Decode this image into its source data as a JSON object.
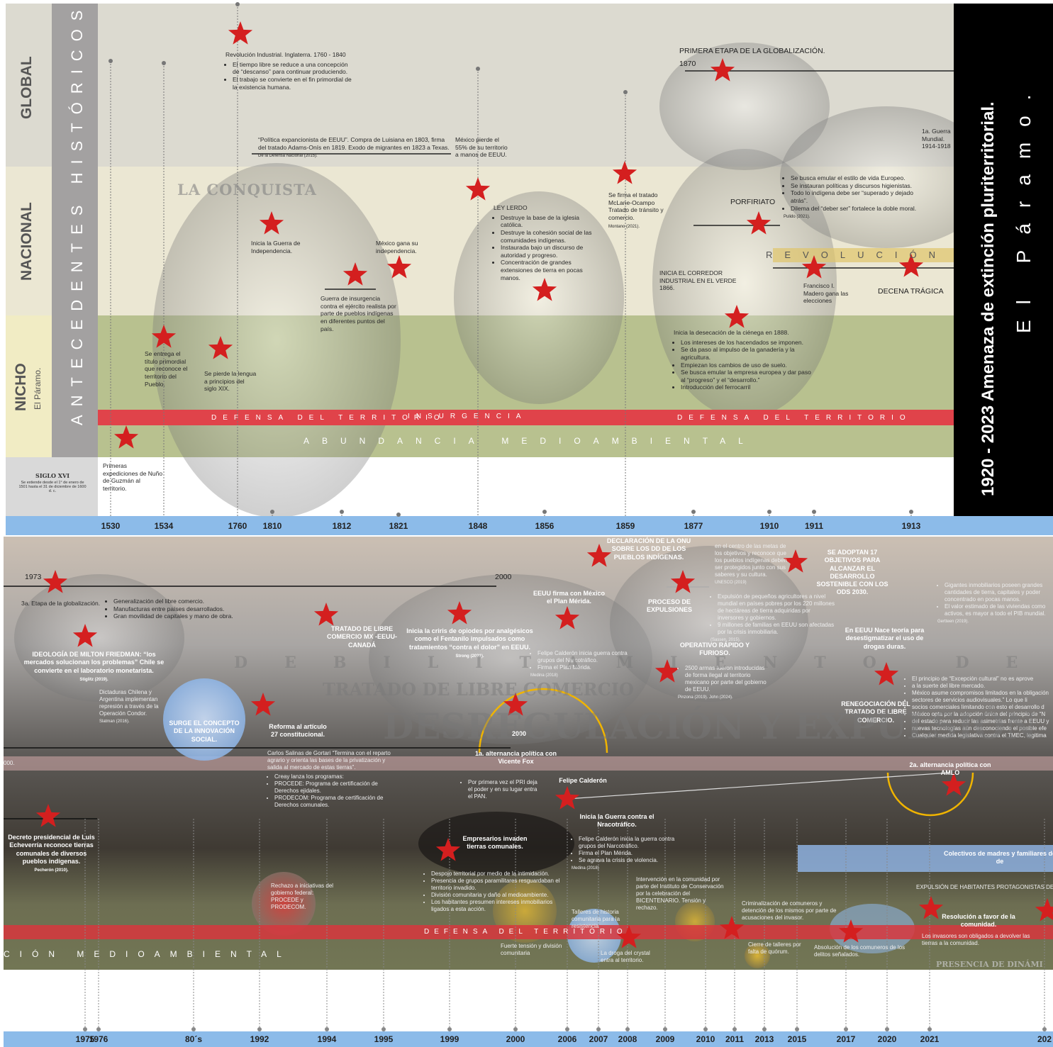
{
  "top": {
    "row_labels": [
      "GLOBAL",
      "NACIONAL",
      "NICHO"
    ],
    "nicho_sub": "El Páramo.",
    "vertical_title": "ANTECEDENTES HISTÓRICOS.",
    "siglo": {
      "title": "SIGLO XVI",
      "text": "Se extiende desde el 1° de enero de 1501 hasta el 31 de diciembre de 1600 d. c."
    },
    "years": [
      "1530",
      "1534",
      "1760",
      "1810",
      "1812",
      "1821",
      "1848",
      "1856",
      "1859",
      "1877",
      "1910",
      "1911",
      "1913"
    ],
    "bands": [
      "LA CONQUISTA",
      "REVOLUCIÓN",
      "DEFENSA DEL TERRITORIO",
      "INSURGENCIA",
      "DEFENSA DEL TERRITORIO",
      "ABUNDANCIA MEDIOAMBIENTAL"
    ],
    "items": [
      {
        "text": "Revolución Industrial. Inglaterra. 1760 - 1840",
        "bullets": [
          "El tiempo libre se reduce a una concepción de “descanso” para continuar produciendo.",
          "El trabajo se convierte en el fin primordial de la existencia humana."
        ]
      },
      {
        "text": "“Política expancionista de EEUU”. Compra de Luisiana en 1803, firma del tratado Adams-Onís en 1819. Exodo de migrantes en 1823 a Texas.",
        "source": "De la Defensa Nacional (2015)."
      },
      {
        "text": "México pierde el 55% de su territorio a manos de EEUU."
      },
      {
        "text": "PRIMERA ETAPA DE LA GLOBALIZACIÓN."
      },
      {
        "text": "1870"
      },
      {
        "text": "1a. Guerra Mundial. 1914-1918"
      },
      {
        "bullets": [
          "Se busca emular el estilo de vida Europeo.",
          "Se instauran políticas y discursos higienistas.",
          "Todo lo indígena debe ser “superado y dejado atrás”.",
          "Dilema del “deber ser” fortalece la doble moral."
        ],
        "source": "Pulido (2021)."
      },
      {
        "text": "PORFIRIATO"
      },
      {
        "text": "Se firma el tratado McLane-Ocampo Tratado de tránsito y comercio.",
        "source": "Montano (2021)."
      },
      {
        "text": "LEY LERDO",
        "bullets": [
          "Destruye la base de la iglesia católica.",
          "Destruye la cohesión social de las comunidades indígenas.",
          "Instaurada bajo un discurso de autoridad y progreso.",
          "Concentración de grandes extensiones de tierra en pocas manos."
        ]
      },
      {
        "text": "Inicia la Guerra de Independencia."
      },
      {
        "text": "México gana su independencia."
      },
      {
        "text": "Guerra de insurgencia contra el ejército realista por parte de pueblos indígenas en diferentes puntos del país."
      },
      {
        "text": "INICIA EL CORREDOR INDUSTRIAL EN EL VERDE 1866."
      },
      {
        "text": "Francisco I. Madero gana las elecciones"
      },
      {
        "text": "DECENA TRÁGICA"
      },
      {
        "text": "Inicia la desecación de la ciénega en 1888.",
        "bullets": [
          "Los intereses de los hacendados se imponen.",
          "Se da paso al impulso de la ganadería y la agricultura.",
          "Empiezan los cambios de uso de suelo.",
          "Se busca emular la empresa europea y dar paso al “progreso” y el “desarrollo.”",
          "Introducción del ferrocarril"
        ]
      },
      {
        "text": "Se entrega el título primordial que reconoce el territorio del Pueblo."
      },
      {
        "text": "Se pierde la lengua a principios del siglo XIX."
      },
      {
        "text": "Primeras expediciones de Nuño de Guzmán al territorio."
      }
    ]
  },
  "side": {
    "title": "1920 - 2023  Amenaza de extinción pluriterritorial.",
    "subtitle": "El Páramo."
  },
  "bottom": {
    "years": [
      "1975",
      "1976",
      "80´s",
      "1992",
      "1994",
      "1995",
      "1999",
      "2000",
      "2006",
      "2007",
      "2008",
      "2009",
      "2010",
      "2011",
      "2013",
      "2015",
      "2017",
      "2020",
      "2021",
      "202"
    ],
    "bands": [
      "DEBILITAMIENTO DEL ESTADO",
      "TRATADO DE LIBRE COMERCIO",
      "DESREGULACIÓN Y EXPULSIÓN",
      "DEFENSA DEL TERRITORIO",
      "CIÓN MEDIOAMBIENTAL",
      "PRESENCIA DE DINÁMI"
    ],
    "items": [
      {
        "text": "1973"
      },
      {
        "text": "2000"
      },
      {
        "text": "3a. Etapa de la globalización."
      },
      {
        "bullets": [
          "Generalización del libre comercio.",
          "Manufacturas entre países desarrollados.",
          "Gran movilidad de capitales y mano de obra."
        ]
      },
      {
        "text": "IDEOLOGÍA DE MILTON FRIEDMAN: “los mercados solucionan los problemas” Chile se convierte en el laboratorio monetarista.",
        "source": "Stiglitz (2019)."
      },
      {
        "text": "Dictaduras Chilena y Argentina implementan represión a través de la Operación Condor.",
        "source": "Slatman (2016)."
      },
      {
        "text": "SURGE EL CONCEPTO DE LA INNOVACIÓN SOCIAL."
      },
      {
        "text": "Reforma al artículo 27 constitucional."
      },
      {
        "text": "TRATADO DE LIBRE COMERCIO MX -EEUU- CANADÁ"
      },
      {
        "text": "Carlos Salinas de Gortari “Termina con el reparto agrario y orienta las bases de la privatización y salida al mercado de estas tierras”.",
        "bullets": [
          "Creay lanza los programas:",
          "PROCEDE: Programa de certificación de Derechos ejidales.",
          "PRODECOM: Programa de certificación de Derechos comunales."
        ]
      },
      {
        "text": "Decreto presidencial de Luis Echeverría reconoce tierras comunales de diversos pueblos indígenas.",
        "source": "Pecherón (2010)."
      },
      {
        "text": "Rechazo a iniciativas del gobierno federal: PROCEDE y PRODECOM."
      },
      {
        "text": "Inicia la criris de opiodes por analgésicos como el Fentanilo impulsados como tratamientos “contra el dolor” en EEUU.",
        "source": "Strong (2021)."
      },
      {
        "text": "EEUU firma con México el Plan Mérida."
      },
      {
        "bullets": [
          "Felipe Calderón inicia guerra contra grupos del Narcotráfico.",
          "Firma el Plan Mérida."
        ],
        "source": "Medina (2018)"
      },
      {
        "text": "DECLARACIÓN DE LA ONU SOBRE LOS DD DE LOS PUEBLOS INDÍGENAS."
      },
      {
        "text": "PROCESO DE EXPULSIONES"
      },
      {
        "text": "SE ADOPTAN 17 OBJETIVOS PARA ALCANZAR EL DESARROLLO SOSTENIBLE CON LOS ODS 2030."
      },
      {
        "text": "en el centro de las metas de los objetivos y reconoce que los pueblos indígenas deben ser protegidos junto con sus saberes y su cultura.",
        "source": "UNESCO (2019)"
      },
      {
        "bullets": [
          "Expulsión de pequeños agricultores a nivel mundial en países pobres por los 220 millones de hectáreas de tierra adquiridas por inversores y gobiernos.",
          "9 millones de familias en EEUU son afectadas por la crisis inmobiliaria."
        ],
        "source": "(Sassen, 2015)."
      },
      {
        "text": "OPERATIVO RÁPIDO Y FURIOSO."
      },
      {
        "bullets": [
          "2500 armas fueron introducidas de forma ilegal al territorio mexicano por parte del gobierno de EEUU."
        ],
        "source": "Pinzona (2019). John (2024)."
      },
      {
        "text": "En EEUU Nace teoría para desestigmatizar el uso de drogas duras."
      },
      {
        "bullets": [
          "Gigantes inmobiliarios poseen grandes cantidades de tierra, capitales y poder concentrado en pocas manos.",
          "El valor estimado de las viviendas como activos, es mayor a todo el PIB mundial."
        ],
        "source": "Gertteen (2019)."
      },
      {
        "bullets": [
          "El principio de “Excepción cultural” no es aprove",
          "a la suerte del libre mercado.",
          "México asume compromisos limitados en la obligación",
          "sectores de servicios audiovisuales.” Lo que li",
          "socios comerciales limitando con esto el desarrollo d",
          "México opta por la adopción única del principio de “N",
          "del estado para reducir las asimetrías frente a EEUU y",
          "nuevas tecnologías aún desconociendo el posible efe",
          "Cualquier medida legislativa contra el TMEC, legitima"
        ]
      },
      {
        "text": "RENEGOCIACIÓN DEL TRATADO DE LIBRE COMERCIO."
      },
      {
        "text": "2000"
      },
      {
        "text": "1a. alternancia política con Vicente Fox"
      },
      {
        "bullets": [
          "Por primera vez el PRI deja el poder y en su lugar entra el PAN."
        ]
      },
      {
        "text": "Felipe Calderón"
      },
      {
        "text": "Inicia la Guerra contra el Nracotráfico."
      },
      {
        "bullets": [
          "Felipe Calderón inicia la guerra contra grupos del Narcotráfico.",
          "Firma el Plan Mérida.",
          "Se agrava la crisis de violencia."
        ],
        "source": "Medina (2018)"
      },
      {
        "text": "2a. alternancia política con AMLO"
      },
      {
        "text": "Empresarios invaden tierras comunales."
      },
      {
        "bullets": [
          "Despojo territorial por medio de la intimidación.",
          "Presencia de grupos paramilitares resguardaban el territorio invadido.",
          "División comunitaria y daño al medioambiente.",
          "Los habitantes presumen intereses inmobiliarios ligados a esta acción."
        ]
      },
      {
        "text": "Colectivos de madres y familiares de de"
      },
      {
        "text": "Intervención en la comunidad por parte del Instituto de Conservación por la celebración del BICENTENARIO. Tensión y rechazo."
      },
      {
        "text": "Criminalización de comuneros y detención de los mismos por parte de acusaciones del invasor."
      },
      {
        "text": "EXPULSIÓN DE HABITANTES PROTAGONISTAS DE"
      },
      {
        "text": "Talleres de historia comunitaria para la resistencia"
      },
      {
        "text": "Fuerte tensión y división comunitaria"
      },
      {
        "text": "La droga del crystal entra al territorio."
      },
      {
        "text": "Cierre de talleres por falta de quórum."
      },
      {
        "text": "Absolución de los comuneros de los delitos señalados."
      },
      {
        "text": "Resolución a favor de la comunidad."
      },
      {
        "text": "Los invasores son obligados a devolver las tierras a la comunidad."
      },
      {
        "text": "000."
      }
    ]
  }
}
